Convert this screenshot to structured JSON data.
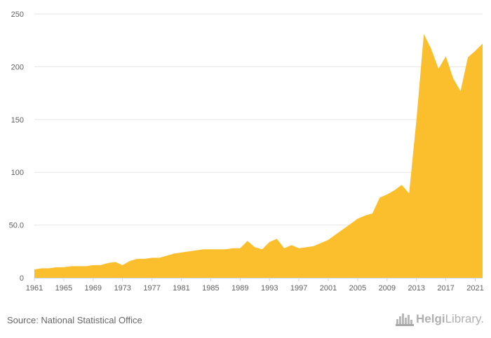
{
  "source_text": "Source: National Statistical Office",
  "brand": {
    "name_bold": "Helgi",
    "name_light": "Library."
  },
  "colors": {
    "area": "#FBBF2E",
    "grid": "#e6e6e6",
    "text": "#606060"
  },
  "chart_data": {
    "type": "area",
    "title": "",
    "xlabel": "",
    "ylabel": "",
    "ylim": [
      0,
      250
    ],
    "xlim": [
      1961,
      2022
    ],
    "y_ticks": [
      0,
      50,
      100,
      150,
      200,
      250
    ],
    "y_tick_labels": [
      "0",
      "50.0",
      "100",
      "150",
      "200",
      "250"
    ],
    "x_ticks": [
      1961,
      1965,
      1969,
      1973,
      1977,
      1981,
      1985,
      1989,
      1993,
      1997,
      2001,
      2005,
      2009,
      2013,
      2017,
      2021
    ],
    "grid": true,
    "legend": "none",
    "series": [
      {
        "x": [
          1961,
          1962,
          1963,
          1964,
          1965,
          1966,
          1967,
          1968,
          1969,
          1970,
          1971,
          1972,
          1973,
          1974,
          1975,
          1976,
          1977,
          1978,
          1979,
          1980,
          1981,
          1982,
          1983,
          1984,
          1985,
          1986,
          1987,
          1988,
          1989,
          1990,
          1991,
          1992,
          1993,
          1994,
          1995,
          1996,
          1997,
          1998,
          1999,
          2000,
          2001,
          2002,
          2003,
          2004,
          2005,
          2006,
          2007,
          2008,
          2009,
          2010,
          2011,
          2012,
          2013,
          2014,
          2015,
          2016,
          2017,
          2018,
          2019,
          2020,
          2021,
          2022
        ],
        "values": [
          8,
          9,
          9,
          10,
          10,
          11,
          11,
          11,
          12,
          12,
          14,
          15,
          12,
          16,
          18,
          18,
          19,
          19,
          21,
          23,
          24,
          25,
          26,
          27,
          27,
          27,
          27,
          28,
          28,
          35,
          29,
          27,
          34,
          37,
          28,
          31,
          28,
          29,
          30,
          33,
          36,
          41,
          46,
          51,
          56,
          59,
          61,
          76,
          79,
          83,
          88,
          80,
          150,
          231,
          217,
          198,
          210,
          189,
          177,
          209,
          215,
          222
        ]
      }
    ]
  }
}
